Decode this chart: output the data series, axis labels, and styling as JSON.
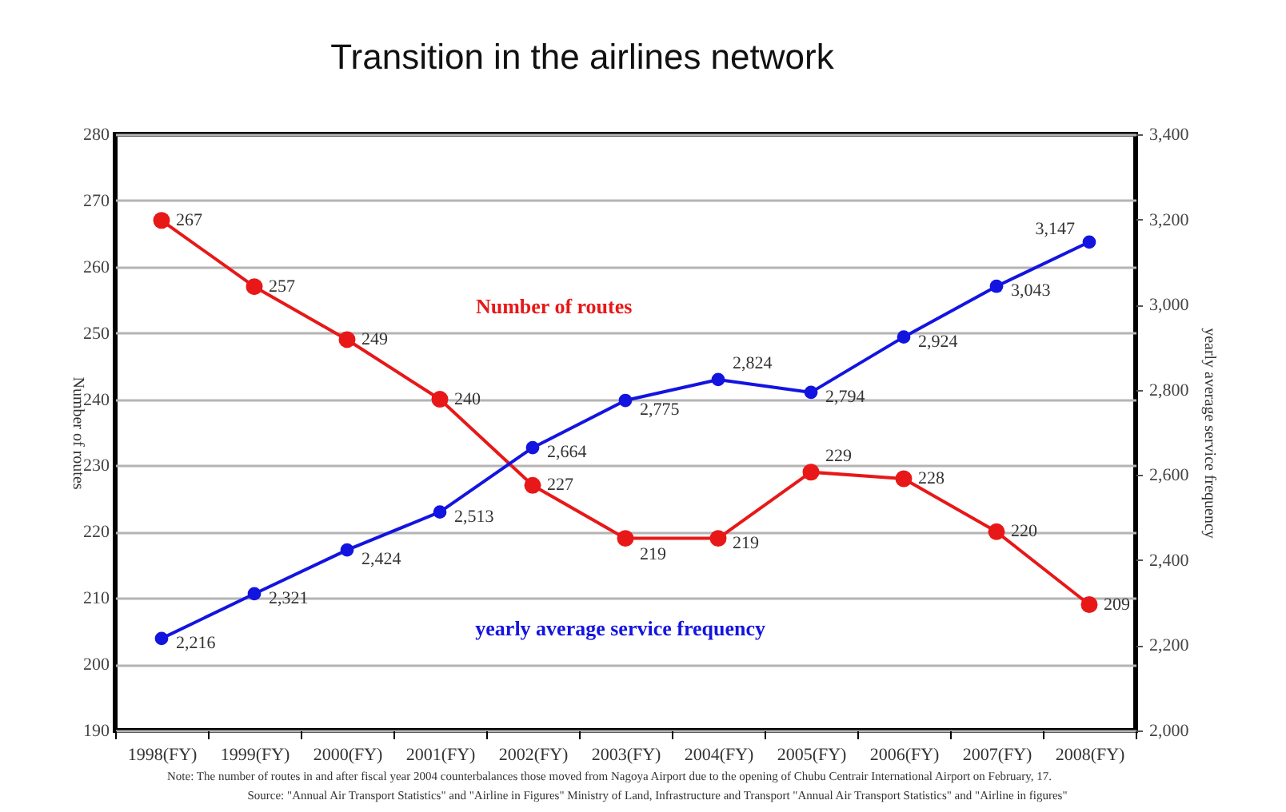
{
  "chart_data": {
    "type": "line",
    "title": "Transition in the airlines network",
    "ylabel": "Number of routes",
    "y2label": "yearly average service frequency",
    "categories": [
      "1998(FY)",
      "1999(FY)",
      "2000(FY)",
      "2001(FY)",
      "2002(FY)",
      "2003(FY)",
      "2004(FY)",
      "2005(FY)",
      "2006(FY)",
      "2007(FY)",
      "2008(FY)"
    ],
    "series": [
      {
        "name": "Number of routes",
        "color": "#e81818",
        "values": [
          267,
          257,
          249,
          240,
          227,
          219,
          219,
          229,
          228,
          220,
          209
        ]
      },
      {
        "name": "yearly average service frequency",
        "color": "#1414e0",
        "axis": "y2",
        "values": [
          2216,
          2321,
          2424,
          2513,
          2664,
          2775,
          2824,
          2794,
          2924,
          3043,
          3147
        ],
        "value_labels": [
          "2,216",
          "2,321",
          "2,424",
          "2,513",
          "2,664",
          "2,775",
          "2,824",
          "2,794",
          "2,924",
          "3,043",
          "3,147"
        ]
      }
    ],
    "ylim": [
      190,
      280
    ],
    "yticks": [
      190,
      200,
      210,
      220,
      230,
      240,
      250,
      260,
      270,
      280
    ],
    "y2lim": [
      2000,
      3400
    ],
    "y2ticks": [
      {
        "value": 2000,
        "label": "2,000"
      },
      {
        "value": 2200,
        "label": "2,200"
      },
      {
        "value": 2400,
        "label": "2,400"
      },
      {
        "value": 2600,
        "label": "2,600"
      },
      {
        "value": 2800,
        "label": "2,800"
      },
      {
        "value": 3000,
        "label": "3,000"
      },
      {
        "value": 3200,
        "label": "3,200"
      },
      {
        "value": 3400,
        "label": "3,400"
      }
    ],
    "grid": "y",
    "legend": false,
    "marker": "circle",
    "line_style": "solid",
    "data_labels": true,
    "annotations": [
      "Note: The number of routes in and after fiscal year 2004 counterbalances those moved from Nagoya Airport due to the opening of Chubu Centrair International Airport on February, 17.",
      "Source: \"Annual Air Transport Statistics\" and \"Airline in Figures\" Ministry of Land, Infrastructure and Transport \"Annual Air Transport Statistics\" and \"Airline in figures\""
    ]
  }
}
